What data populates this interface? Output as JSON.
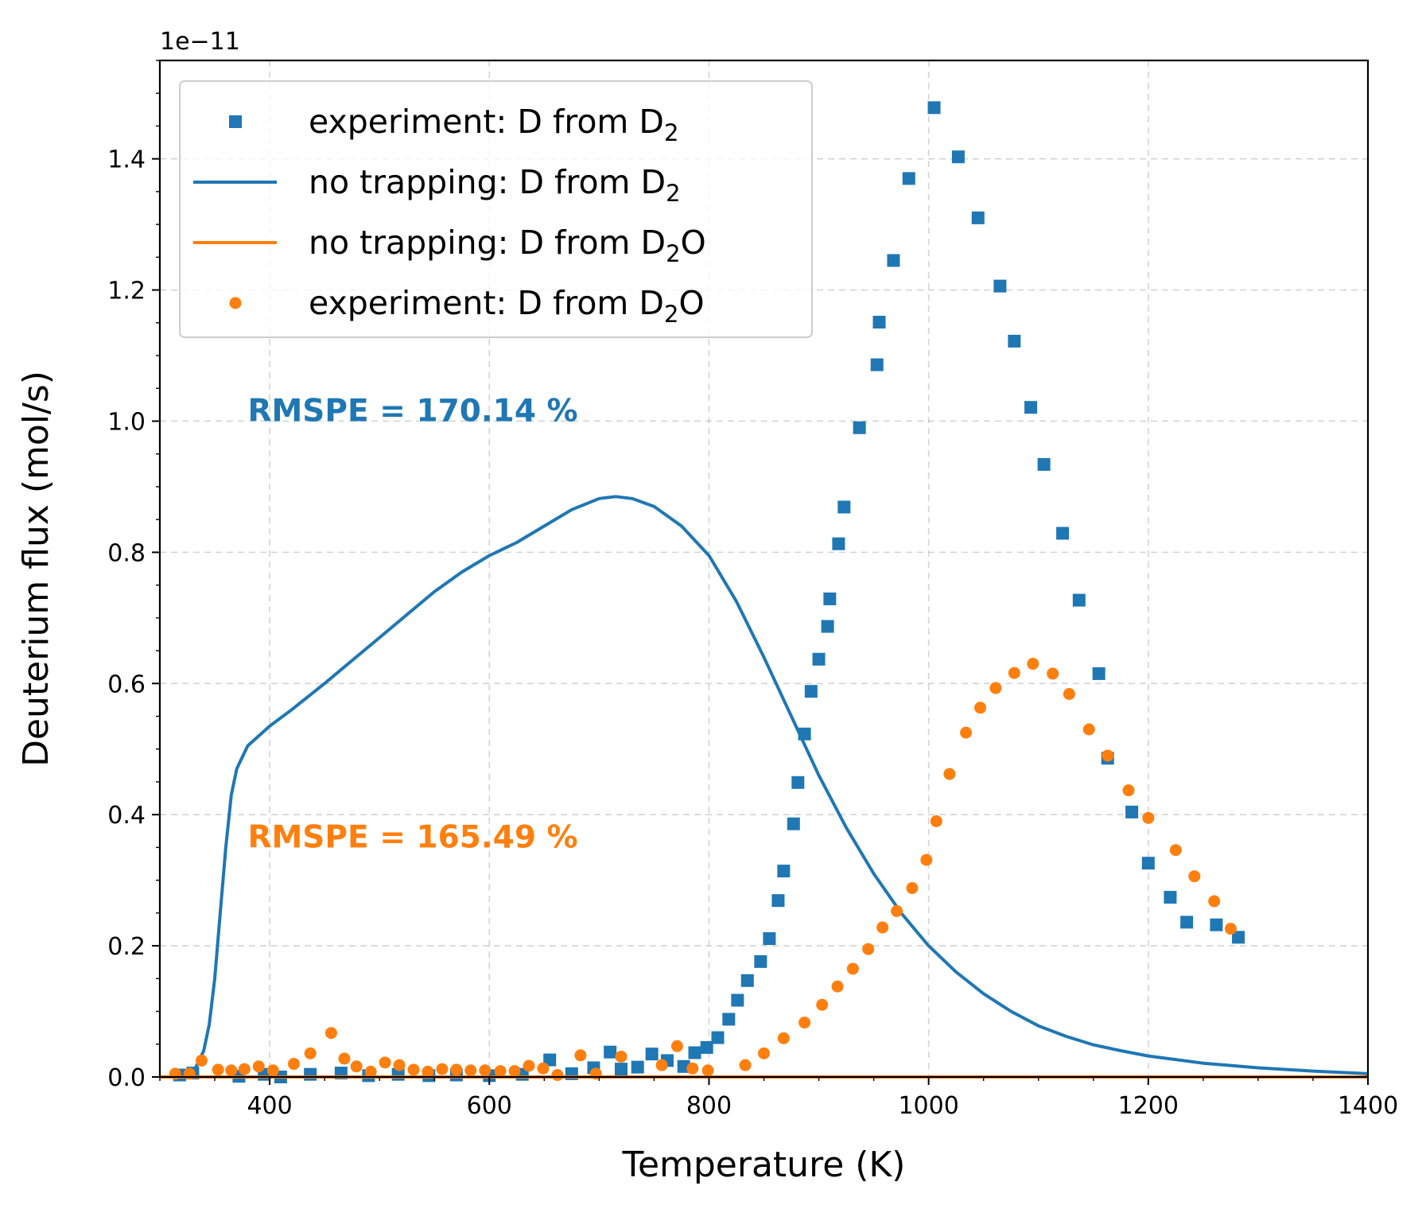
{
  "chart_data": {
    "type": "line",
    "xlabel": "Temperature (K)",
    "ylabel": "Deuterium flux (mol/s)",
    "y_scale_label": "1e−11",
    "xlim": [
      300,
      1400
    ],
    "ylim": [
      0,
      1.55
    ],
    "x_ticks": [
      400,
      600,
      800,
      1000,
      1200,
      1400
    ],
    "x_tick_labels": [
      "400",
      "600",
      "800",
      "1000",
      "1200",
      "1400"
    ],
    "y_ticks": [
      0.0,
      0.2,
      0.4,
      0.6,
      0.8,
      1.0,
      1.2,
      1.4
    ],
    "y_tick_labels": [
      "0.0",
      "0.2",
      "0.4",
      "0.6",
      "0.8",
      "1.0",
      "1.2",
      "1.4"
    ],
    "grid": true,
    "legend_position": "top-left",
    "colors": {
      "blue": "#1f77b4",
      "orange": "#ff7f0e"
    },
    "legend": [
      {
        "series": 0,
        "marker": "square",
        "main": "experiment: D from D",
        "sub": "2",
        "tail": ""
      },
      {
        "series": 1,
        "marker": "line",
        "main": "no trapping: D from D",
        "sub": "2",
        "tail": ""
      },
      {
        "series": 2,
        "marker": "line",
        "main": "no trapping: D from D",
        "sub": "2",
        "tail": "O"
      },
      {
        "series": 3,
        "marker": "circle",
        "main": "experiment: D from D",
        "sub": "2",
        "tail": "O"
      }
    ],
    "annotations": [
      {
        "text": "RMSPE = 170.14 %",
        "color": "#1f77b4",
        "x": 380,
        "y": 1.0
      },
      {
        "text": "RMSPE = 165.49 %",
        "color": "#ff7f0e",
        "x": 380,
        "y": 0.35
      }
    ],
    "series": [
      {
        "kind": "scatter",
        "marker": "square",
        "color": "#1f77b4",
        "points": [
          [
            318,
            0.003
          ],
          [
            330,
            0.006
          ],
          [
            372,
            0.001
          ],
          [
            395,
            0.004
          ],
          [
            410,
            0.0
          ],
          [
            437,
            0.004
          ],
          [
            465,
            0.006
          ],
          [
            490,
            0.002
          ],
          [
            517,
            0.004
          ],
          [
            545,
            0.002
          ],
          [
            570,
            0.003
          ],
          [
            600,
            0.002
          ],
          [
            630,
            0.004
          ],
          [
            655,
            0.026
          ],
          [
            675,
            0.005
          ],
          [
            695,
            0.014
          ],
          [
            710,
            0.038
          ],
          [
            720,
            0.012
          ],
          [
            735,
            0.015
          ],
          [
            748,
            0.035
          ],
          [
            762,
            0.025
          ],
          [
            777,
            0.016
          ],
          [
            787,
            0.037
          ],
          [
            798,
            0.045
          ],
          [
            808,
            0.06
          ],
          [
            818,
            0.088
          ],
          [
            826,
            0.117
          ],
          [
            835,
            0.147
          ],
          [
            847,
            0.176
          ],
          [
            855,
            0.211
          ],
          [
            863,
            0.269
          ],
          [
            868,
            0.314
          ],
          [
            877,
            0.386
          ],
          [
            881,
            0.449
          ],
          [
            887,
            0.523
          ],
          [
            893,
            0.588
          ],
          [
            900,
            0.637
          ],
          [
            908,
            0.687
          ],
          [
            910,
            0.729
          ],
          [
            918,
            0.813
          ],
          [
            923,
            0.869
          ],
          [
            937,
            0.99
          ],
          [
            953,
            1.086
          ],
          [
            955,
            1.151
          ],
          [
            968,
            1.245
          ],
          [
            982,
            1.37
          ],
          [
            1005,
            1.478
          ],
          [
            1027,
            1.403
          ],
          [
            1045,
            1.31
          ],
          [
            1065,
            1.206
          ],
          [
            1078,
            1.122
          ],
          [
            1093,
            1.021
          ],
          [
            1105,
            0.934
          ],
          [
            1122,
            0.829
          ],
          [
            1137,
            0.727
          ],
          [
            1155,
            0.615
          ],
          [
            1163,
            0.486
          ],
          [
            1185,
            0.404
          ],
          [
            1200,
            0.326
          ],
          [
            1220,
            0.274
          ],
          [
            1235,
            0.236
          ],
          [
            1262,
            0.232
          ],
          [
            1282,
            0.213
          ]
        ]
      },
      {
        "kind": "line",
        "color": "#1f77b4",
        "points": [
          [
            300,
            0.0
          ],
          [
            320,
            0.0
          ],
          [
            330,
            0.005
          ],
          [
            340,
            0.04
          ],
          [
            345,
            0.08
          ],
          [
            350,
            0.15
          ],
          [
            355,
            0.25
          ],
          [
            360,
            0.35
          ],
          [
            365,
            0.43
          ],
          [
            370,
            0.47
          ],
          [
            380,
            0.505
          ],
          [
            400,
            0.535
          ],
          [
            420,
            0.56
          ],
          [
            450,
            0.6
          ],
          [
            475,
            0.635
          ],
          [
            500,
            0.67
          ],
          [
            525,
            0.705
          ],
          [
            550,
            0.74
          ],
          [
            575,
            0.77
          ],
          [
            600,
            0.795
          ],
          [
            625,
            0.815
          ],
          [
            650,
            0.84
          ],
          [
            675,
            0.865
          ],
          [
            700,
            0.882
          ],
          [
            715,
            0.885
          ],
          [
            730,
            0.882
          ],
          [
            750,
            0.87
          ],
          [
            775,
            0.84
          ],
          [
            800,
            0.795
          ],
          [
            825,
            0.725
          ],
          [
            850,
            0.64
          ],
          [
            875,
            0.55
          ],
          [
            900,
            0.46
          ],
          [
            925,
            0.38
          ],
          [
            950,
            0.31
          ],
          [
            975,
            0.25
          ],
          [
            1000,
            0.2
          ],
          [
            1025,
            0.16
          ],
          [
            1050,
            0.127
          ],
          [
            1075,
            0.1
          ],
          [
            1100,
            0.078
          ],
          [
            1125,
            0.062
          ],
          [
            1150,
            0.049
          ],
          [
            1175,
            0.04
          ],
          [
            1200,
            0.032
          ],
          [
            1250,
            0.021
          ],
          [
            1300,
            0.014
          ],
          [
            1350,
            0.009
          ],
          [
            1400,
            0.005
          ]
        ]
      },
      {
        "kind": "line",
        "color": "#ff7f0e",
        "points": [
          [
            300,
            0.0
          ],
          [
            1400,
            0.0
          ]
        ]
      },
      {
        "kind": "scatter",
        "marker": "circle",
        "color": "#ff7f0e",
        "points": [
          [
            314,
            0.005
          ],
          [
            327,
            0.005
          ],
          [
            338,
            0.025
          ],
          [
            353,
            0.011
          ],
          [
            365,
            0.01
          ],
          [
            377,
            0.012
          ],
          [
            390,
            0.016
          ],
          [
            403,
            0.01
          ],
          [
            422,
            0.02
          ],
          [
            437,
            0.036
          ],
          [
            456,
            0.067
          ],
          [
            468,
            0.028
          ],
          [
            479,
            0.016
          ],
          [
            492,
            0.008
          ],
          [
            505,
            0.022
          ],
          [
            518,
            0.018
          ],
          [
            531,
            0.011
          ],
          [
            544,
            0.008
          ],
          [
            557,
            0.012
          ],
          [
            570,
            0.011
          ],
          [
            583,
            0.01
          ],
          [
            596,
            0.01
          ],
          [
            610,
            0.009
          ],
          [
            623,
            0.009
          ],
          [
            636,
            0.017
          ],
          [
            649,
            0.013
          ],
          [
            662,
            0.003
          ],
          [
            683,
            0.033
          ],
          [
            697,
            0.005
          ],
          [
            720,
            0.031
          ],
          [
            757,
            0.018
          ],
          [
            771,
            0.047
          ],
          [
            785,
            0.013
          ],
          [
            799,
            0.01
          ],
          [
            833,
            0.018
          ],
          [
            850,
            0.036
          ],
          [
            868,
            0.059
          ],
          [
            887,
            0.083
          ],
          [
            903,
            0.11
          ],
          [
            917,
            0.138
          ],
          [
            931,
            0.165
          ],
          [
            945,
            0.195
          ],
          [
            958,
            0.228
          ],
          [
            971,
            0.253
          ],
          [
            985,
            0.288
          ],
          [
            998,
            0.331
          ],
          [
            1007,
            0.39
          ],
          [
            1019,
            0.462
          ],
          [
            1034,
            0.525
          ],
          [
            1047,
            0.563
          ],
          [
            1061,
            0.593
          ],
          [
            1078,
            0.616
          ],
          [
            1095,
            0.63
          ],
          [
            1113,
            0.615
          ],
          [
            1128,
            0.584
          ],
          [
            1146,
            0.53
          ],
          [
            1163,
            0.49
          ],
          [
            1182,
            0.437
          ],
          [
            1200,
            0.395
          ],
          [
            1225,
            0.346
          ],
          [
            1242,
            0.306
          ],
          [
            1260,
            0.268
          ],
          [
            1275,
            0.226
          ]
        ]
      }
    ]
  }
}
